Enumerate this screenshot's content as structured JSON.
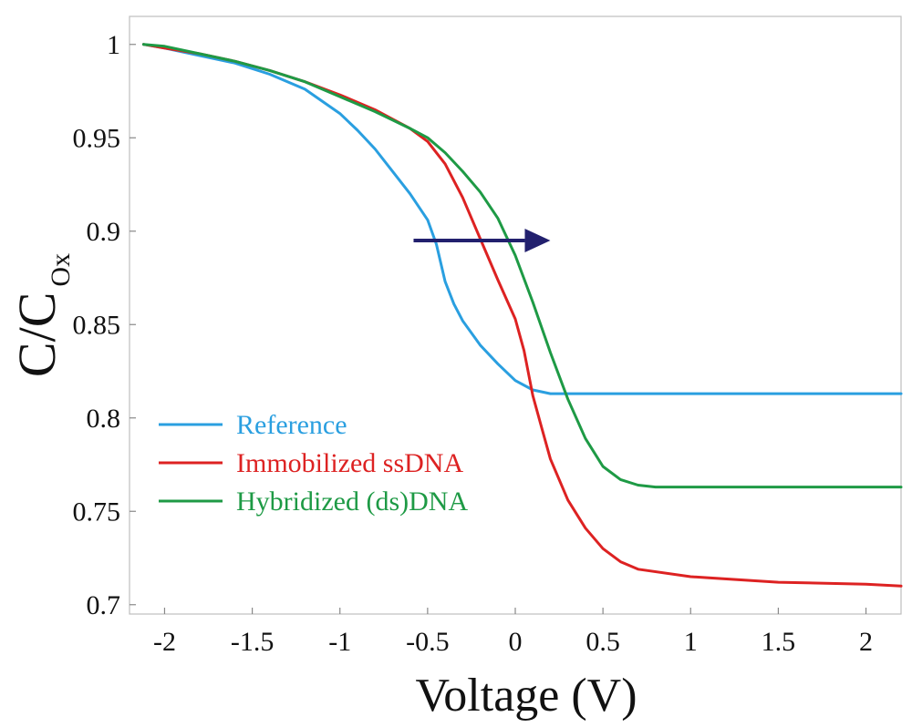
{
  "chart_data": {
    "type": "line",
    "title": "",
    "xlabel": "Voltage (V)",
    "ylabel_main": "C/C",
    "ylabel_sub": "Ox",
    "xlim": [
      -2.2,
      2.2
    ],
    "ylim": [
      0.695,
      1.015
    ],
    "xticks": [
      -2,
      -1.5,
      -1,
      -0.5,
      0,
      0.5,
      1,
      1.5,
      2
    ],
    "xtick_labels": [
      "-2",
      "-1.5",
      "-1",
      "-0.5",
      "0",
      "0.5",
      "1",
      "1.5",
      "2"
    ],
    "yticks": [
      0.7,
      0.75,
      0.8,
      0.85,
      0.9,
      0.95,
      1.0
    ],
    "ytick_labels": [
      "0.7",
      "0.75",
      "0.8",
      "0.85",
      "0.9",
      "0.95",
      "1"
    ],
    "grid": false,
    "legend_position": "lower-left",
    "series": [
      {
        "name": "Reference",
        "color": "#2a9fe0",
        "x": [
          -2.12,
          -2.0,
          -1.8,
          -1.6,
          -1.4,
          -1.2,
          -1.0,
          -0.9,
          -0.8,
          -0.7,
          -0.6,
          -0.5,
          -0.45,
          -0.4,
          -0.35,
          -0.3,
          -0.2,
          -0.1,
          0.0,
          0.1,
          0.2,
          0.3,
          0.5,
          1.0,
          1.5,
          2.0,
          2.2
        ],
        "y": [
          1.0,
          0.998,
          0.994,
          0.99,
          0.984,
          0.976,
          0.963,
          0.954,
          0.944,
          0.932,
          0.92,
          0.906,
          0.893,
          0.873,
          0.861,
          0.852,
          0.839,
          0.829,
          0.82,
          0.815,
          0.813,
          0.813,
          0.813,
          0.813,
          0.813,
          0.813,
          0.813
        ]
      },
      {
        "name": "Immobilized ssDNA",
        "color": "#dd2222",
        "x": [
          -2.12,
          -2.0,
          -1.8,
          -1.6,
          -1.4,
          -1.2,
          -1.0,
          -0.8,
          -0.6,
          -0.5,
          -0.4,
          -0.3,
          -0.2,
          -0.1,
          0.0,
          0.05,
          0.1,
          0.15,
          0.2,
          0.3,
          0.4,
          0.5,
          0.6,
          0.7,
          1.0,
          1.5,
          2.0,
          2.2
        ],
        "y": [
          1.0,
          0.998,
          0.995,
          0.991,
          0.986,
          0.98,
          0.973,
          0.965,
          0.955,
          0.948,
          0.936,
          0.918,
          0.896,
          0.874,
          0.853,
          0.836,
          0.812,
          0.795,
          0.778,
          0.756,
          0.741,
          0.73,
          0.723,
          0.719,
          0.715,
          0.712,
          0.711,
          0.71
        ]
      },
      {
        "name": "Hybridized (ds)DNA",
        "color": "#1e9a45",
        "x": [
          -2.12,
          -2.0,
          -1.8,
          -1.6,
          -1.4,
          -1.2,
          -1.0,
          -0.8,
          -0.6,
          -0.5,
          -0.4,
          -0.3,
          -0.2,
          -0.1,
          0.0,
          0.1,
          0.2,
          0.3,
          0.4,
          0.5,
          0.6,
          0.7,
          0.8,
          1.0,
          1.5,
          2.0,
          2.2
        ],
        "y": [
          1.0,
          0.999,
          0.995,
          0.991,
          0.986,
          0.98,
          0.972,
          0.964,
          0.955,
          0.95,
          0.942,
          0.932,
          0.921,
          0.907,
          0.887,
          0.862,
          0.835,
          0.81,
          0.789,
          0.774,
          0.767,
          0.764,
          0.763,
          0.763,
          0.763,
          0.763,
          0.763
        ]
      }
    ],
    "annotations": [
      {
        "type": "arrow",
        "from": [
          -0.58,
          0.895
        ],
        "to": [
          0.2,
          0.895
        ],
        "color": "#22206e",
        "meaning": "shift direction"
      }
    ]
  }
}
